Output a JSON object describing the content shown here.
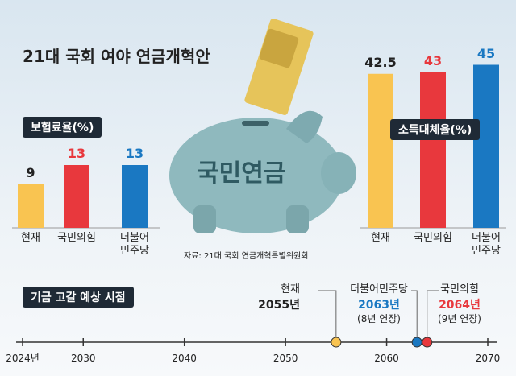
{
  "title": "21대 국회 여야 연금개혁안",
  "piggy_label": "국민연금",
  "source": "자료: 21대 국회 연금개혁특별위원회",
  "chart_data": [
    {
      "type": "bar",
      "title": "보험료율(%)",
      "categories": [
        "현재",
        "국민의힘",
        "더불어\n민주당"
      ],
      "values": [
        9,
        13,
        13
      ],
      "colors": [
        "#f9c451",
        "#e8383d",
        "#1a78c2"
      ],
      "label_colors": [
        "#222222",
        "#e8383d",
        "#1a78c2"
      ]
    },
    {
      "type": "bar",
      "title": "소득대체율(%)",
      "categories": [
        "현재",
        "국민의힘",
        "더불어\n민주당"
      ],
      "values": [
        42.5,
        43,
        45
      ],
      "colors": [
        "#f9c451",
        "#e8383d",
        "#1a78c2"
      ],
      "label_colors": [
        "#222222",
        "#e8383d",
        "#1a78c2"
      ]
    },
    {
      "type": "timeline",
      "title": "기금 고갈 예상 시점",
      "xlim": [
        2024,
        2070
      ],
      "xticks": [
        {
          "value": 2024,
          "label": "2024년"
        },
        2030,
        2040,
        2050,
        2060,
        2070
      ],
      "series": [
        {
          "name": "현재",
          "color": "#f9c451",
          "values": [
            2055
          ],
          "value_labels": [
            "2055년"
          ],
          "label_color": "#222222"
        },
        {
          "name": "더불어민주당",
          "color": "#1a78c2",
          "values": [
            2063
          ],
          "value_labels": [
            "2063년"
          ],
          "label_color": "#1a78c2",
          "note": "(8년 연장)"
        },
        {
          "name": "국민의힘",
          "color": "#e8383d",
          "values": [
            2064
          ],
          "value_labels": [
            "2064년"
          ],
          "label_color": "#e8383d",
          "note": "(9년 연장)"
        }
      ]
    }
  ]
}
